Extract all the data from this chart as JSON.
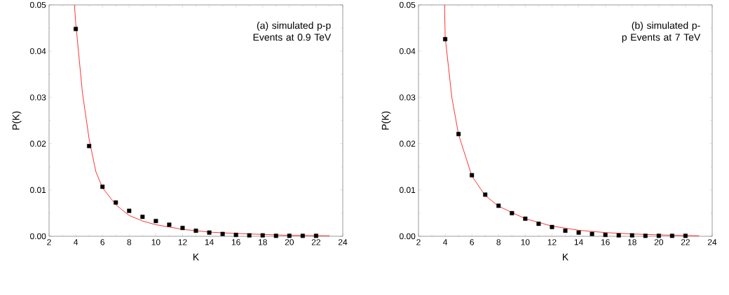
{
  "chart_data": [
    {
      "type": "scatter",
      "xlabel": "K",
      "ylabel": "P(K)",
      "annotations": [
        "(a) simulated p-p Events at 0.9 TeV"
      ],
      "xlim": [
        2,
        24
      ],
      "ylim": [
        0,
        0.05
      ],
      "xticks": [
        2,
        4,
        6,
        8,
        10,
        12,
        14,
        16,
        18,
        20,
        22,
        24
      ],
      "yticks": [
        {
          "value": 0,
          "label": "0.00"
        },
        {
          "value": 0.01,
          "label": "0.01"
        },
        {
          "value": 0.02,
          "label": "0.02"
        },
        {
          "value": 0.03,
          "label": "0.03"
        },
        {
          "value": 0.04,
          "label": "0.04"
        },
        {
          "value": 0.05,
          "label": "0.05"
        }
      ],
      "grid": false,
      "series": [
        {
          "color": "#000000",
          "marker": "square",
          "x": [
            4,
            5,
            6,
            7,
            8,
            9,
            10,
            11,
            12,
            13,
            14,
            15,
            16,
            17,
            18,
            19,
            20,
            21,
            22
          ],
          "values": [
            0.0448,
            0.0195,
            0.0107,
            0.0073,
            0.0055,
            0.0042,
            0.0033,
            0.0025,
            0.0018,
            0.0012,
            0.0008,
            0.0005,
            0.0003,
            0.0002,
            0.0002,
            0.0001,
            0.0001,
            0.0001,
            0.0001
          ]
        },
        {
          "type": "line",
          "color": "#ff0000",
          "x": [
            3.9,
            4,
            4.5,
            5,
            5.5,
            6,
            7,
            8,
            9,
            10,
            12,
            14,
            16,
            18,
            20,
            23
          ],
          "values": [
            0.05,
            0.046,
            0.031,
            0.021,
            0.014,
            0.0105,
            0.0068,
            0.0045,
            0.0033,
            0.0025,
            0.0015,
            0.0009,
            0.0006,
            0.0004,
            0.0002,
            0.0001
          ]
        }
      ]
    },
    {
      "type": "scatter",
      "xlabel": "K",
      "ylabel": "P(K)",
      "annotations": [
        "(b) simulated p-p Events at 7 TeV"
      ],
      "xlim": [
        2,
        24
      ],
      "ylim": [
        0,
        0.05
      ],
      "xticks": [
        2,
        4,
        6,
        8,
        10,
        12,
        14,
        16,
        18,
        20,
        22,
        24
      ],
      "yticks": [
        {
          "value": 0,
          "label": "0.00"
        },
        {
          "value": 0.01,
          "label": "0.01"
        },
        {
          "value": 0.02,
          "label": "0.02"
        },
        {
          "value": 0.03,
          "label": "0.03"
        },
        {
          "value": 0.04,
          "label": "0.04"
        },
        {
          "value": 0.05,
          "label": "0.05"
        }
      ],
      "grid": false,
      "series": [
        {
          "color": "#000000",
          "marker": "square",
          "x": [
            4,
            5,
            6,
            7,
            8,
            9,
            10,
            11,
            12,
            13,
            14,
            15,
            16,
            17,
            18,
            19,
            20,
            21,
            22
          ],
          "values": [
            0.0426,
            0.0221,
            0.0132,
            0.009,
            0.0066,
            0.005,
            0.0038,
            0.0027,
            0.002,
            0.0012,
            0.0008,
            0.0005,
            0.0003,
            0.0002,
            0.0002,
            0.0001,
            0.0001,
            0.0001,
            0.0001
          ]
        },
        {
          "type": "line",
          "color": "#ff0000",
          "x": [
            3.95,
            4,
            4.5,
            5,
            6,
            7,
            8,
            10,
            12,
            14,
            16,
            18,
            20,
            23
          ],
          "values": [
            0.05,
            0.043,
            0.03,
            0.022,
            0.013,
            0.0088,
            0.0065,
            0.0038,
            0.0022,
            0.0013,
            0.0008,
            0.0005,
            0.0003,
            0.0001
          ]
        }
      ]
    }
  ]
}
